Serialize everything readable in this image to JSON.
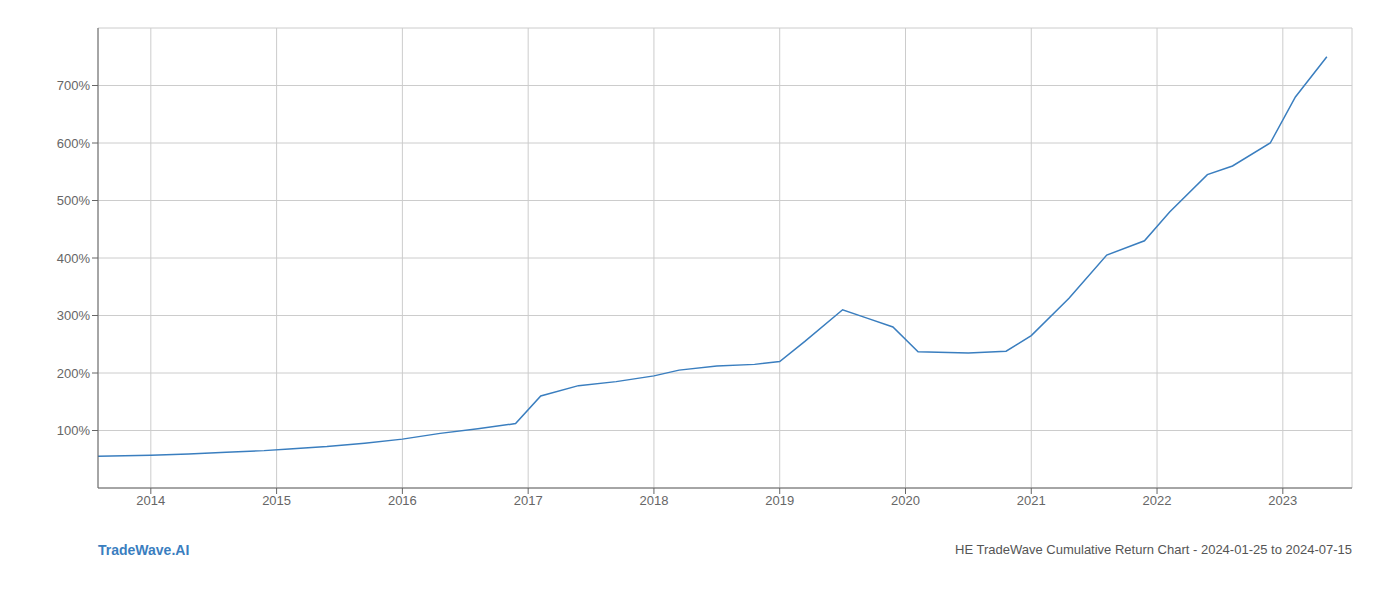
{
  "chart_data": {
    "type": "line",
    "title": "HE TradeWave Cumulative Return Chart - 2024-01-25 to 2024-07-15",
    "annotations": [
      "TradeWave.AI"
    ],
    "x": [
      2013.58,
      2014.0,
      2014.3,
      2014.6,
      2014.9,
      2015.1,
      2015.4,
      2015.7,
      2016.0,
      2016.3,
      2016.6,
      2016.9,
      2017.1,
      2017.4,
      2017.7,
      2018.0,
      2018.2,
      2018.5,
      2018.8,
      2019.0,
      2019.2,
      2019.5,
      2019.7,
      2019.9,
      2020.1,
      2020.5,
      2020.8,
      2021.0,
      2021.3,
      2021.6,
      2021.9,
      2022.1,
      2022.4,
      2022.6,
      2022.9,
      2023.1,
      2023.35
    ],
    "values": [
      55,
      57,
      59,
      62,
      65,
      68,
      72,
      78,
      85,
      95,
      103,
      112,
      160,
      178,
      185,
      195,
      205,
      212,
      215,
      220,
      255,
      310,
      295,
      280,
      237,
      235,
      238,
      265,
      330,
      405,
      430,
      480,
      545,
      560,
      600,
      680,
      750
    ],
    "color": "#3a7ebf",
    "xlim": [
      2013.58,
      2023.55
    ],
    "xticks": [
      2014,
      2015,
      2016,
      2017,
      2018,
      2019,
      2020,
      2021,
      2022,
      2023
    ],
    "ylim": [
      0,
      800
    ],
    "yticks": [
      {
        "value": 100,
        "label": "100%"
      },
      {
        "value": 200,
        "label": "200%"
      },
      {
        "value": 300,
        "label": "300%"
      },
      {
        "value": 400,
        "label": "400%"
      },
      {
        "value": 500,
        "label": "500%"
      },
      {
        "value": 600,
        "label": "600%"
      },
      {
        "value": 700,
        "label": "700%"
      }
    ],
    "grid": true
  }
}
